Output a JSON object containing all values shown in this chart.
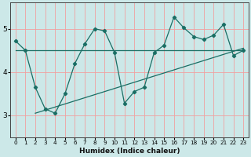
{
  "xlabel": "Humidex (Indice chaleur)",
  "bg_color": "#cce8e8",
  "line_color": "#1a6e64",
  "grid_color": "#f0a0a0",
  "xlim": [
    -0.5,
    23.5
  ],
  "ylim": [
    2.5,
    5.6
  ],
  "yticks": [
    3,
    4,
    5
  ],
  "xticks": [
    0,
    1,
    2,
    3,
    4,
    5,
    6,
    7,
    8,
    9,
    10,
    11,
    12,
    13,
    14,
    15,
    16,
    17,
    18,
    19,
    20,
    21,
    22,
    23
  ],
  "curve_x": [
    0,
    1,
    2,
    3,
    4,
    5,
    6,
    7,
    8,
    9,
    10,
    11,
    12,
    13,
    14,
    15,
    16,
    17,
    18,
    19,
    20,
    21,
    22,
    23
  ],
  "curve_y": [
    4.72,
    4.5,
    3.65,
    3.15,
    3.05,
    3.5,
    4.2,
    4.65,
    5.0,
    4.95,
    4.45,
    3.28,
    3.55,
    3.65,
    4.45,
    4.62,
    5.27,
    5.02,
    4.82,
    4.75,
    4.85,
    5.1,
    4.38,
    4.5
  ],
  "hline_x": [
    0,
    23
  ],
  "hline_y": [
    4.5,
    4.5
  ],
  "regline_x": [
    2,
    23
  ],
  "regline_y": [
    3.05,
    4.55
  ]
}
